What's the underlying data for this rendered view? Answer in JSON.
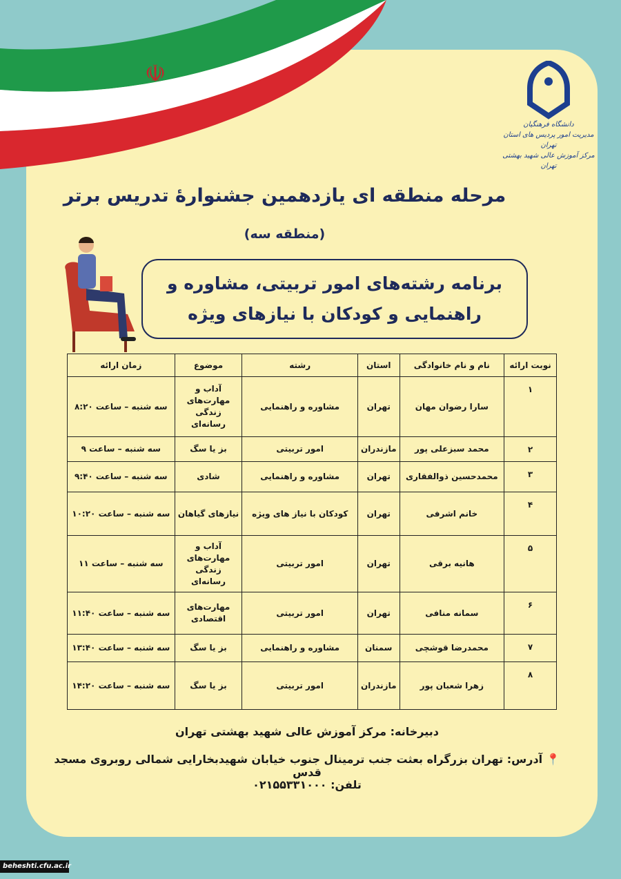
{
  "logo": {
    "lines": [
      "دانشگاه فرهنگیان",
      "مدیریت امور پردیس های استان تهران",
      "مرکز آموزش عالی شهید بهشتی تهران"
    ],
    "color": "#1d3f8f"
  },
  "title": "مرحله منطقه ای یازدهمین جشنوارۀ تدریس برتر",
  "subtitle": "(منطقه سه)",
  "box": {
    "line1": "برنامه رشته‌های امور تربیتی، مشاوره و",
    "line2": "راهنمایی و کودکان با نیازهای ویژه"
  },
  "table": {
    "headers": [
      "نوبت ارائه",
      "نام و نام خانوادگی",
      "استان",
      "رشته",
      "موضوع",
      "زمان ارائه"
    ],
    "rows": [
      [
        "۱",
        "سارا رضوان مهان",
        "تهران",
        "مشاوره و راهنمایی",
        "آداب و مهارت‌های زندگی رسانه‌ای",
        "سه شنبه – ساعت ۸:۲۰"
      ],
      [
        "۲",
        "محمد سبزعلی پور",
        "مازندران",
        "امور تربیتی",
        "بز یا سگ",
        "سه شنبه – ساعت ۹"
      ],
      [
        "۳",
        "محمدحسین ذوالفقاری",
        "تهران",
        "مشاوره و راهنمایی",
        "شادی",
        "سه شنبه – ساعت ۹:۴۰"
      ],
      [
        "۴",
        "خانم اشرفی",
        "تهران",
        "کودکان با نیاز های ویژه",
        "نیازهای گیاهان",
        "سه شنبه – ساعت ۱۰:۲۰"
      ],
      [
        "۵",
        "هانیه برقی",
        "تهران",
        "امور تربیتی",
        "آداب و مهارت‌های زندگی رسانه‌ای",
        "سه شنبه – ساعت ۱۱"
      ],
      [
        "۶",
        "سمانه منافی",
        "تهران",
        "امور تربیتی",
        "مهارت‌های اقتصادی",
        "سه شنبه – ساعت ۱۱:۴۰"
      ],
      [
        "۷",
        "محمدرضا قوشچی",
        "سمنان",
        "مشاوره و راهنمایی",
        "بز یا سگ",
        "سه شنبه – ساعت ۱۳:۴۰"
      ],
      [
        "۸",
        "زهرا شعبان پور",
        "مازندران",
        "امور تربیتی",
        "بز یا سگ",
        "سه شنبه – ساعت ۱۴:۲۰"
      ]
    ]
  },
  "footer": {
    "secretariat": "دبیرخانه: مرکز آموزش عالی شهید بهشتی تهران",
    "address": "آدرس: تهران بزرگراه بعثت جنب ترمینال جنوب خیابان شهیدبخارایی شمالی روبروی مسجد قدس",
    "phone": "تلفن: ۰۲۱۵۵۳۳۱۰۰۰"
  },
  "watermark": "beheshti.cfu.ac.ir",
  "colors": {
    "background": "#8fcaca",
    "card": "#fbf2b6",
    "title": "#1e2a5a",
    "flag_green": "#1f9a4a",
    "flag_red": "#d9272e"
  }
}
